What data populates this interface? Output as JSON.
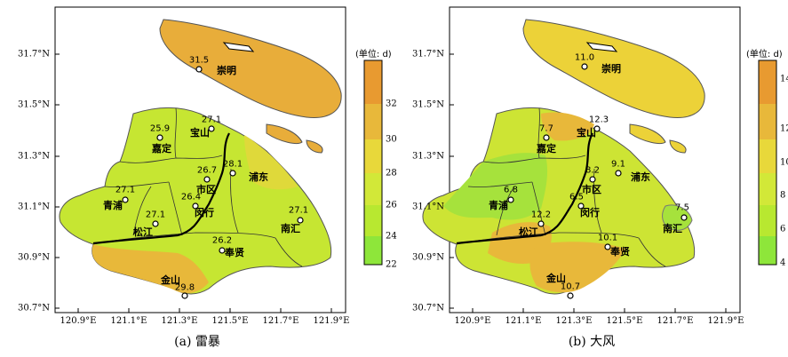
{
  "axis": {
    "lat_ticks": [
      "31.7°N",
      "31.5°N",
      "31.3°N",
      "31.1°N",
      "30.9°N",
      "30.7°N"
    ],
    "lon_ticks": [
      "120.9°E",
      "121.1°E",
      "121.3°E",
      "121.5°E",
      "121.7°E",
      "121.9°E"
    ]
  },
  "panels": [
    {
      "caption": "(a) 雷暴",
      "unit": "(单位: d)",
      "colorbar_ticks": [
        "32",
        "30",
        "28",
        "26",
        "24",
        "22"
      ],
      "districts": {
        "chongming": "崇明",
        "baoshan": "宝山",
        "jiading": "嘉定",
        "pudong": "浦东",
        "shiqu": "市区",
        "qingpu": "青浦",
        "minhang": "闵行",
        "songjiang": "松江",
        "nanhui": "南汇",
        "fengxian": "奉贤",
        "jinshan": "金山"
      },
      "values": {
        "chongming": "31.5",
        "jiading": "25.9",
        "baoshan": "27.1",
        "shiqu_n": "26.7",
        "pudong": "28.1",
        "qingpu": "27.1",
        "shiqu_w": "26.4",
        "songjiang": "27.1",
        "nanhui": "27.1",
        "fengxian": "26.2",
        "jinshan": "29.8"
      }
    },
    {
      "caption": "(b) 大风",
      "unit": "(单位: d)",
      "colorbar_ticks": [
        "14",
        "12",
        "10",
        "8",
        "6",
        "4"
      ],
      "districts": {
        "chongming": "崇明",
        "baoshan": "宝山",
        "jiading": "嘉定",
        "pudong": "浦东",
        "shiqu": "市区",
        "qingpu": "青浦",
        "minhang": "闵行",
        "songjiang": "松江",
        "nanhui": "南汇",
        "fengxian": "奉贤",
        "jinshan": "金山"
      },
      "values": {
        "chongming": "11.0",
        "jiading": "7.7",
        "baoshan": "12.3",
        "shiqu_n": "8.2",
        "pudong": "9.1",
        "qingpu": "6.8",
        "shiqu_w": "6.5",
        "songjiang": "12.2",
        "nanhui": "7.5",
        "fengxian": "10.1",
        "jinshan": "10.7"
      }
    }
  ],
  "colors": {
    "c_low": "#8ee63a",
    "c_mid": "#b8e830",
    "c_green2": "#d2e838",
    "c_yellow": "#e8d83a",
    "c_orange1": "#e8b83a",
    "c_orange2": "#e89a30"
  }
}
